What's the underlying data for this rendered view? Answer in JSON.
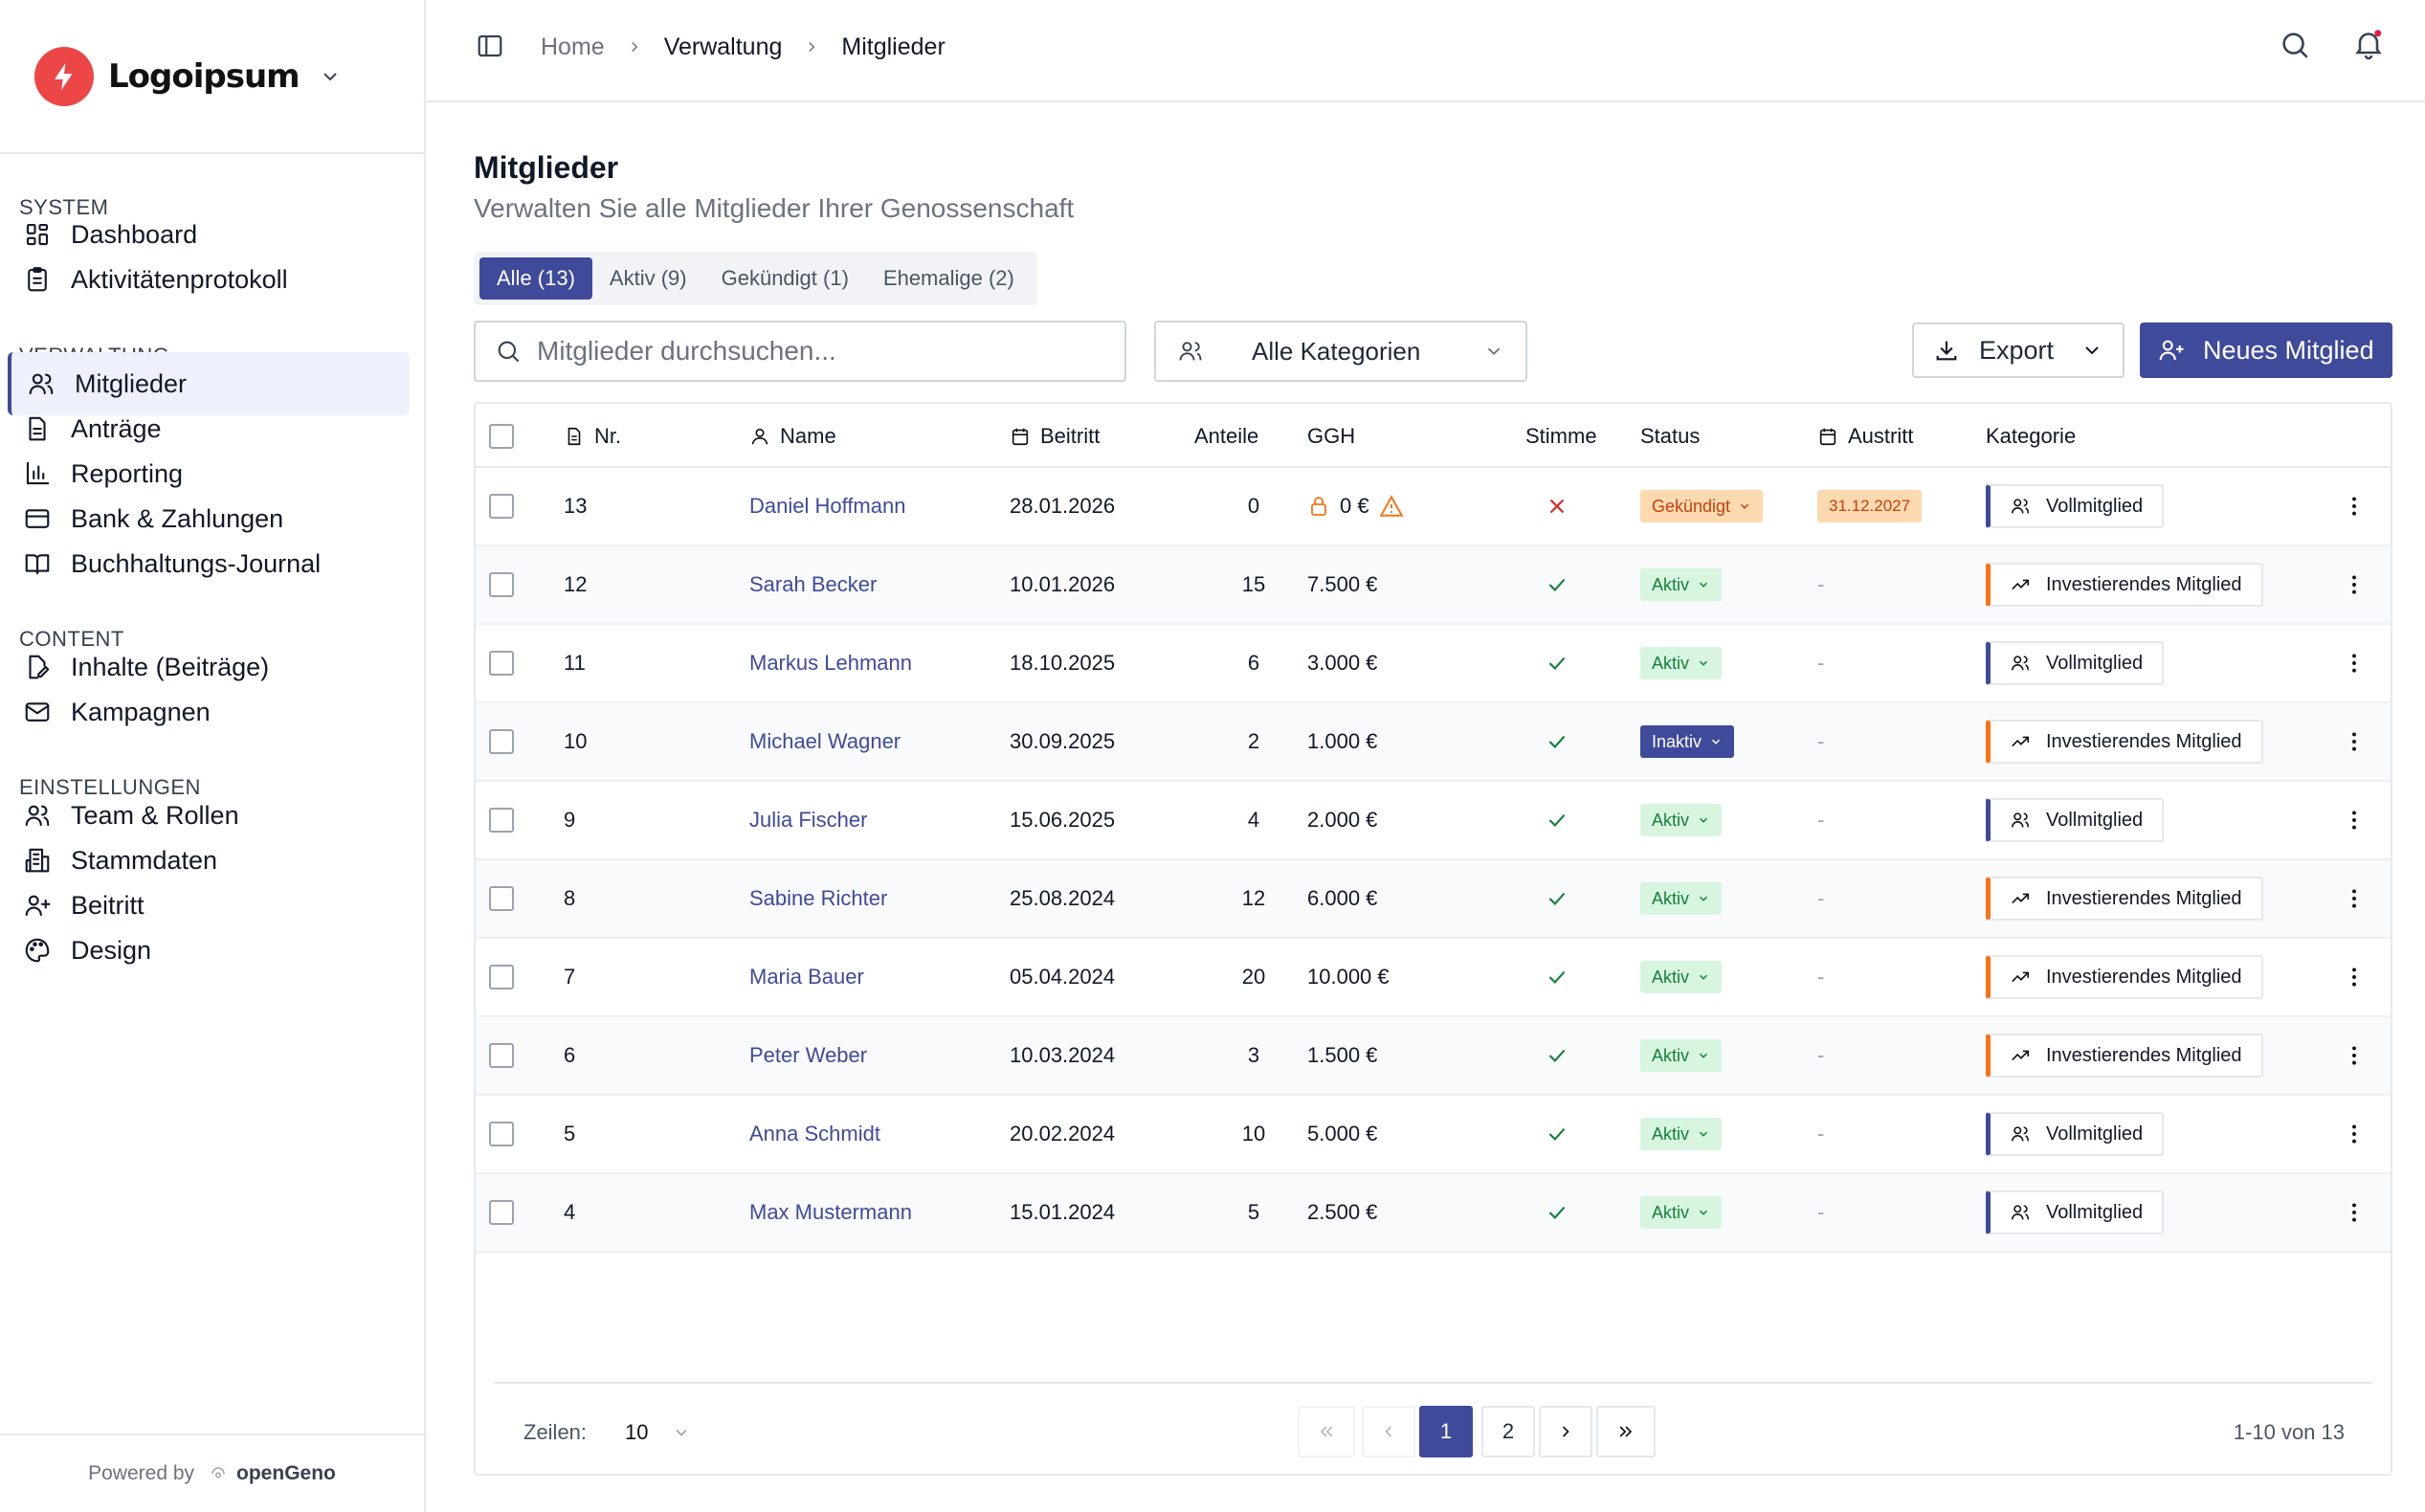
{
  "brand": {
    "name": "Logoipsum"
  },
  "sidebar": {
    "sections": [
      {
        "title": "SYSTEM",
        "items": [
          {
            "label": "Dashboard",
            "icon": "dashboard-icon"
          },
          {
            "label": "Aktivitätenprotokoll",
            "icon": "clipboard-icon"
          }
        ]
      },
      {
        "title": "VERWALTUNG",
        "items": [
          {
            "label": "Mitglieder",
            "icon": "users-icon"
          },
          {
            "label": "Anträge",
            "icon": "document-icon"
          },
          {
            "label": "Reporting",
            "icon": "chart-icon"
          },
          {
            "label": "Bank & Zahlungen",
            "icon": "card-icon"
          },
          {
            "label": "Buchhaltungs-Journal",
            "icon": "book-icon"
          }
        ]
      },
      {
        "title": "CONTENT",
        "items": [
          {
            "label": "Inhalte (Beiträge)",
            "icon": "file-edit-icon"
          },
          {
            "label": "Kampagnen",
            "icon": "mail-icon"
          }
        ]
      },
      {
        "title": "EINSTELLUNGEN",
        "items": [
          {
            "label": "Team & Rollen",
            "icon": "users-icon"
          },
          {
            "label": "Stammdaten",
            "icon": "building-icon"
          },
          {
            "label": "Beitritt",
            "icon": "user-plus-icon"
          },
          {
            "label": "Design",
            "icon": "palette-icon"
          }
        ]
      }
    ],
    "footer": {
      "powered": "Powered by",
      "name": "openGeno"
    }
  },
  "breadcrumb": [
    "Home",
    "Verwaltung",
    "Mitglieder"
  ],
  "page": {
    "title": "Mitglieder",
    "subtitle": "Verwalten Sie alle Mitglieder Ihrer Genossenschaft"
  },
  "tabs": [
    "Alle (13)",
    "Aktiv (9)",
    "Gekündigt (1)",
    "Ehemalige (2)"
  ],
  "search": {
    "placeholder": "Mitglieder durchsuchen..."
  },
  "category_filter": "Alle Kategorien",
  "buttons": {
    "export": "Export",
    "new": "Neues Mitglied"
  },
  "columns": {
    "nr": "Nr.",
    "name": "Name",
    "beitritt": "Beitritt",
    "anteile": "Anteile",
    "ggh": "GGH",
    "stimme": "Stimme",
    "status": "Status",
    "austritt": "Austritt",
    "kategorie": "Kategorie"
  },
  "rows": [
    {
      "nr": "13",
      "name": "Daniel Hoffmann",
      "beitritt": "28.01.2026",
      "anteile": "0",
      "ggh": "0 €",
      "stimme": false,
      "status": "Gekündigt",
      "austritt": "31.12.2027",
      "kategorie": "Vollmitglied",
      "ggh_warning": true
    },
    {
      "nr": "12",
      "name": "Sarah Becker",
      "beitritt": "10.01.2026",
      "anteile": "15",
      "ggh": "7.500 €",
      "stimme": true,
      "status": "Aktiv",
      "austritt": "-",
      "kategorie": "Investierendes Mitglied"
    },
    {
      "nr": "11",
      "name": "Markus Lehmann",
      "beitritt": "18.10.2025",
      "anteile": "6",
      "ggh": "3.000 €",
      "stimme": true,
      "status": "Aktiv",
      "austritt": "-",
      "kategorie": "Vollmitglied"
    },
    {
      "nr": "10",
      "name": "Michael Wagner",
      "beitritt": "30.09.2025",
      "anteile": "2",
      "ggh": "1.000 €",
      "stimme": true,
      "status": "Inaktiv",
      "austritt": "-",
      "kategorie": "Investierendes Mitglied"
    },
    {
      "nr": "9",
      "name": "Julia Fischer",
      "beitritt": "15.06.2025",
      "anteile": "4",
      "ggh": "2.000 €",
      "stimme": true,
      "status": "Aktiv",
      "austritt": "-",
      "kategorie": "Vollmitglied"
    },
    {
      "nr": "8",
      "name": "Sabine Richter",
      "beitritt": "25.08.2024",
      "anteile": "12",
      "ggh": "6.000 €",
      "stimme": true,
      "status": "Aktiv",
      "austritt": "-",
      "kategorie": "Investierendes Mitglied"
    },
    {
      "nr": "7",
      "name": "Maria Bauer",
      "beitritt": "05.04.2024",
      "anteile": "20",
      "ggh": "10.000 €",
      "stimme": true,
      "status": "Aktiv",
      "austritt": "-",
      "kategorie": "Investierendes Mitglied"
    },
    {
      "nr": "6",
      "name": "Peter Weber",
      "beitritt": "10.03.2024",
      "anteile": "3",
      "ggh": "1.500 €",
      "stimme": true,
      "status": "Aktiv",
      "austritt": "-",
      "kategorie": "Investierendes Mitglied"
    },
    {
      "nr": "5",
      "name": "Anna Schmidt",
      "beitritt": "20.02.2024",
      "anteile": "10",
      "ggh": "5.000 €",
      "stimme": true,
      "status": "Aktiv",
      "austritt": "-",
      "kategorie": "Vollmitglied"
    },
    {
      "nr": "4",
      "name": "Max Mustermann",
      "beitritt": "15.01.2024",
      "anteile": "5",
      "ggh": "2.500 €",
      "stimme": true,
      "status": "Aktiv",
      "austritt": "-",
      "kategorie": "Vollmitglied"
    }
  ],
  "pagination": {
    "rows_label": "Zeilen:",
    "rows_value": "10",
    "pages": [
      "1",
      "2"
    ],
    "current": "1",
    "summary": "1-10 von 13"
  },
  "colors": {
    "primary": "#3f4a9b",
    "brand_red": "#ec4646",
    "active_green": "#15803d",
    "warning_orange": "#f97316"
  }
}
